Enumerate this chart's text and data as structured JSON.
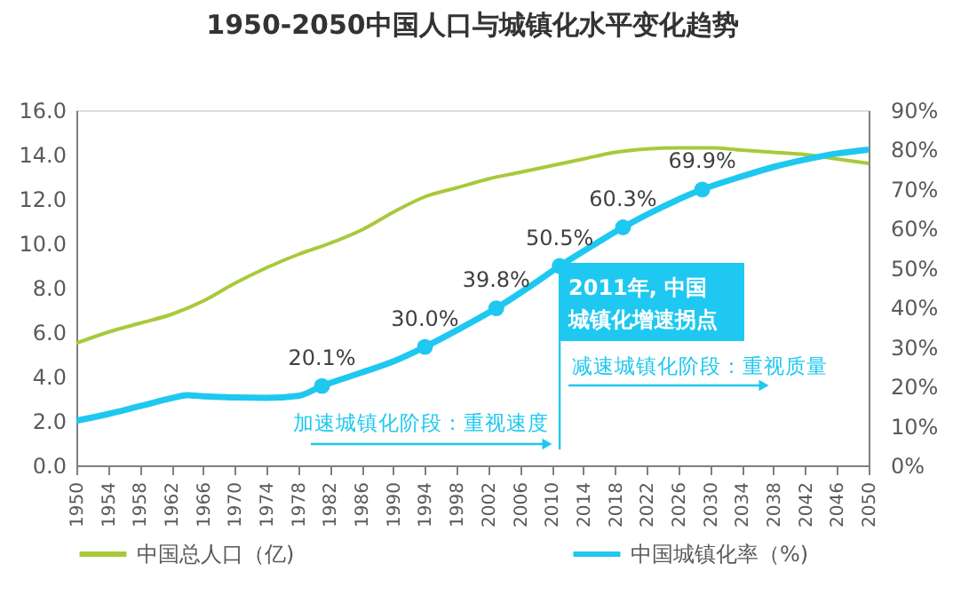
{
  "chart_data": {
    "type": "line",
    "title": "1950-2050中国人口与城镇化水平变化趋势",
    "x": [
      1950,
      1954,
      1958,
      1962,
      1966,
      1970,
      1974,
      1978,
      1982,
      1986,
      1990,
      1994,
      1998,
      2002,
      2006,
      2010,
      2014,
      2018,
      2022,
      2026,
      2030,
      2034,
      2038,
      2042,
      2046,
      2050
    ],
    "series": [
      {
        "name": "中国总人口（亿)",
        "color": "#a9c93a",
        "values": [
          5.5,
          6.0,
          6.4,
          6.8,
          7.4,
          8.2,
          8.9,
          9.5,
          10.0,
          10.6,
          11.4,
          12.1,
          12.5,
          12.9,
          13.2,
          13.5,
          13.8,
          14.1,
          14.25,
          14.3,
          14.3,
          14.2,
          14.1,
          14.0,
          13.8,
          13.6
        ]
      },
      {
        "name": "中国城镇化率（%)",
        "color": "#1ec8f0",
        "axis": "y2",
        "x": [
          1950,
          1954,
          1958,
          1962,
          1964,
          1966,
          1970,
          1974,
          1978,
          1981,
          1986,
          1990,
          1994,
          1998,
          2003,
          2007,
          2011,
          2015,
          2019,
          2024,
          2029,
          2034,
          2038,
          2042,
          2046,
          2050
        ],
        "values": [
          11.3,
          13,
          15,
          17,
          17.8,
          17.5,
          17.2,
          17.1,
          17.6,
          20.1,
          23.5,
          26.3,
          30.0,
          34.2,
          39.8,
          45,
          50.5,
          55.5,
          60.3,
          65.5,
          69.9,
          73.2,
          75.6,
          77.5,
          79,
          80
        ]
      },
      {
        "type": "scatter",
        "color": "#1ec8f0",
        "axis": "y2",
        "x": [
          1981,
          1994,
          2003,
          2011,
          2019,
          2029
        ],
        "values": [
          20.1,
          30.0,
          39.8,
          50.5,
          60.3,
          69.9
        ],
        "value_labels": [
          "20.1%",
          "30.0%",
          "39.8%",
          "50.5%",
          "60.3%",
          "69.9%"
        ]
      }
    ],
    "xlim": [
      1950,
      2050
    ],
    "xticks": [
      1950,
      1954,
      1958,
      1962,
      1966,
      1970,
      1974,
      1978,
      1982,
      1986,
      1990,
      1994,
      1998,
      2002,
      2006,
      2010,
      2014,
      2018,
      2022,
      2026,
      2030,
      2034,
      2038,
      2042,
      2046,
      2050
    ],
    "ylim": [
      0,
      16
    ],
    "yticks": [
      {
        "value": 0,
        "label": "0.0"
      },
      {
        "value": 2,
        "label": "2.0"
      },
      {
        "value": 4,
        "label": "4.0"
      },
      {
        "value": 6,
        "label": "6.0"
      },
      {
        "value": 8,
        "label": "8.0"
      },
      {
        "value": 10,
        "label": "10.0"
      },
      {
        "value": 12,
        "label": "12.0"
      },
      {
        "value": 14,
        "label": "14.0"
      },
      {
        "value": 16,
        "label": "16.0"
      }
    ],
    "y2lim": [
      0,
      90
    ],
    "y2ticks": [
      {
        "value": 0,
        "label": "0%"
      },
      {
        "value": 10,
        "label": "10%"
      },
      {
        "value": 20,
        "label": "20%"
      },
      {
        "value": 30,
        "label": "30%"
      },
      {
        "value": 40,
        "label": "40%"
      },
      {
        "value": 50,
        "label": "50%"
      },
      {
        "value": 60,
        "label": "60%"
      },
      {
        "value": 70,
        "label": "70%"
      },
      {
        "value": 80,
        "label": "80%"
      },
      {
        "value": 90,
        "label": "90%"
      }
    ],
    "ref_lines": [
      {
        "axis": "x",
        "value": 2011,
        "color": "#1ec8f0"
      }
    ],
    "annotations": [
      "2011年, 中国城镇化增速拐点",
      "加速城镇化阶段：重视速度",
      "减速城镇化阶段：重视质量"
    ],
    "legend": "bottom",
    "grid": false
  }
}
